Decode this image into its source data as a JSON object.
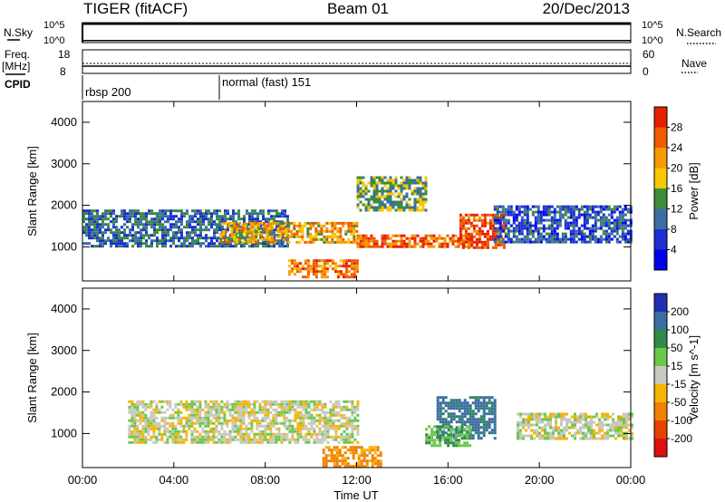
{
  "header": {
    "station": "TIGER (fitACF)",
    "beam": "Beam 01",
    "date": "20/Dec/2013"
  },
  "strips": {
    "nsky_label": "N.Sky",
    "nsky_ticks": [
      "10^5",
      "10^0"
    ],
    "nsearch_label": "N.Search",
    "nsearch_ticks": [
      "10^5",
      "10^0"
    ],
    "freq_label_1": "Freq.",
    "freq_label_2": "[MHz]",
    "freq_ticks": [
      "18",
      "8"
    ],
    "nave_label": "Nave",
    "nave_ticks": [
      "60",
      "0"
    ],
    "cpid_label": "CPID",
    "cpid_modes": [
      {
        "name": "rbsp 200",
        "start": 0
      },
      {
        "name": "normal (fast) 151",
        "start": 6
      }
    ]
  },
  "chart_data": [
    {
      "type": "heatmap",
      "title": "",
      "ylabel": "Slant Range [km]",
      "xlabel": "",
      "colorbar_label": "Power [dB]",
      "colorbar_ticks": [
        "28",
        "24",
        "20",
        "16",
        "12",
        "8",
        "4"
      ],
      "colorbar_colors": [
        "#e62000",
        "#f05a00",
        "#f59a00",
        "#f5c800",
        "#3c8c3c",
        "#3a6ea0",
        "#1d2fd0",
        "#0000ee"
      ],
      "xlim": [
        0,
        24
      ],
      "ylim": [
        180,
        4500
      ],
      "xticks": [
        "00:00",
        "04:00",
        "08:00",
        "12:00",
        "16:00",
        "20:00",
        "00:00"
      ],
      "yticks": [
        "1000",
        "2000",
        "3000",
        "4000"
      ],
      "features": [
        {
          "t": [
            0,
            9
          ],
          "r": [
            1000,
            1900
          ],
          "db": 10
        },
        {
          "t": [
            6,
            12
          ],
          "r": [
            1100,
            1600
          ],
          "db": 20
        },
        {
          "t": [
            9,
            12
          ],
          "r": [
            300,
            700
          ],
          "db": 24
        },
        {
          "t": [
            12,
            17
          ],
          "r": [
            1000,
            1300
          ],
          "db": 26
        },
        {
          "t": [
            16.5,
            18.5
          ],
          "r": [
            1000,
            1800
          ],
          "db": 28
        },
        {
          "t": [
            18,
            24
          ],
          "r": [
            1100,
            2000
          ],
          "db": 8
        },
        {
          "t": [
            12,
            15
          ],
          "r": [
            1900,
            2700
          ],
          "db": 14
        }
      ]
    },
    {
      "type": "heatmap",
      "title": "",
      "ylabel": "Slant Range [km]",
      "xlabel": "Time UT",
      "colorbar_label": "Velocity [m s^-1]",
      "colorbar_ticks": [
        "200",
        "100",
        "50",
        "15",
        "-15",
        "-50",
        "-100",
        "-200"
      ],
      "colorbar_colors": [
        "#2030b0",
        "#3a6ea0",
        "#2d8c4c",
        "#6ac84a",
        "#c8c8c0",
        "#f5b400",
        "#f08000",
        "#e84000",
        "#e01010"
      ],
      "xlim": [
        0,
        24
      ],
      "ylim": [
        180,
        4500
      ],
      "xticks": [
        "00:00",
        "04:00",
        "08:00",
        "12:00",
        "16:00",
        "20:00",
        "00:00"
      ],
      "yticks": [
        "1000",
        "2000",
        "3000",
        "4000"
      ],
      "features": [
        {
          "t": [
            2,
            12
          ],
          "r": [
            800,
            1800
          ],
          "v": 0
        },
        {
          "t": [
            10.5,
            13
          ],
          "r": [
            200,
            700
          ],
          "v": -60
        },
        {
          "t": [
            15.5,
            18
          ],
          "r": [
            900,
            1900
          ],
          "v": 120
        },
        {
          "t": [
            15,
            17
          ],
          "r": [
            700,
            1200
          ],
          "v": 40
        },
        {
          "t": [
            19,
            24
          ],
          "r": [
            900,
            1500
          ],
          "v": 0
        }
      ]
    }
  ]
}
